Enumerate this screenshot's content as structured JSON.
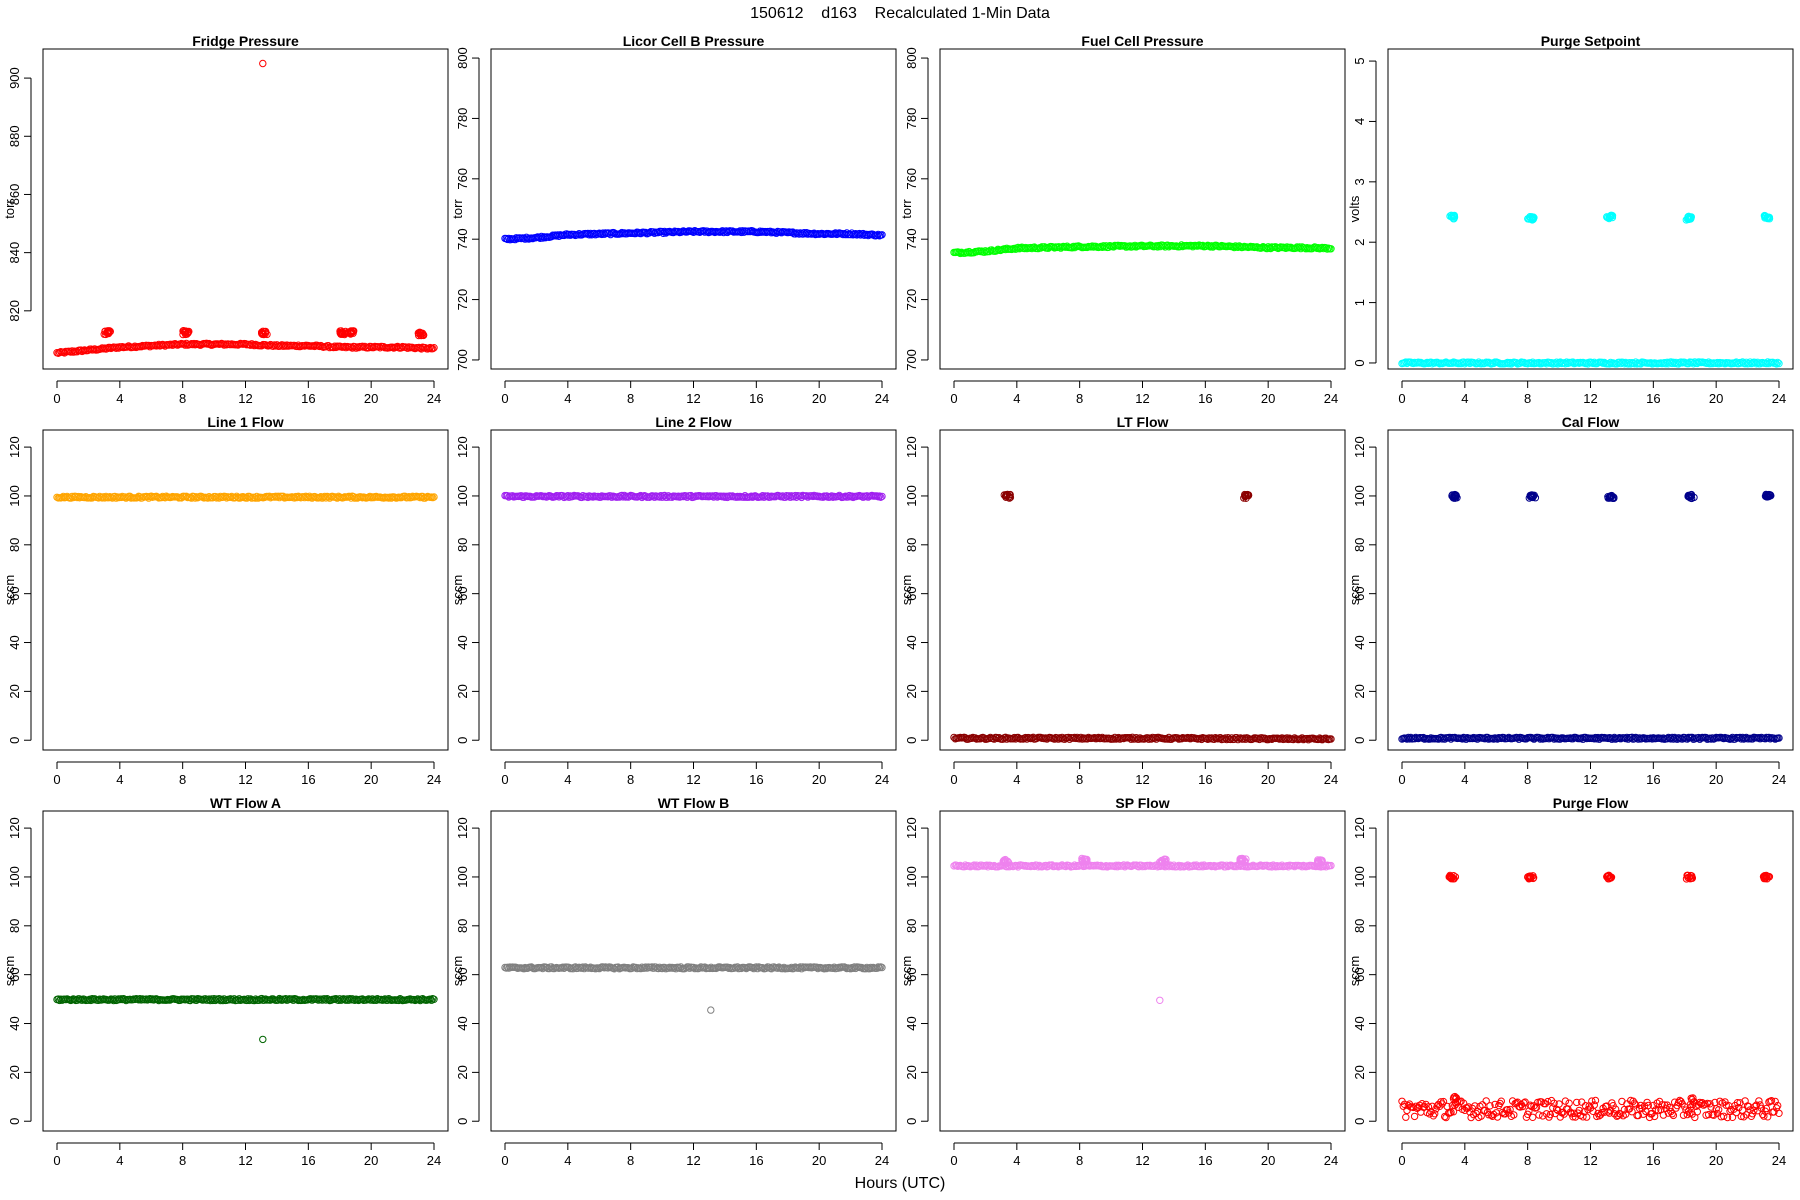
{
  "figure_title": "150612    d163    Recalculated 1-Min Data",
  "x_axis_label": "Hours (UTC)",
  "chart_data": [
    {
      "type": "scatter",
      "title": "Fridge Pressure",
      "ylabel": "torr",
      "color": "#ff0000",
      "xlim": [
        0,
        24
      ],
      "xticks": [
        0,
        4,
        8,
        12,
        16,
        20,
        24
      ],
      "ylim": [
        800,
        910
      ],
      "yticks": [
        820,
        840,
        860,
        880,
        900
      ],
      "baseline": [
        [
          0,
          805.5
        ],
        [
          1,
          806
        ],
        [
          2,
          806.5
        ],
        [
          3,
          807
        ],
        [
          4,
          807.5
        ],
        [
          6,
          808
        ],
        [
          8,
          808.5
        ],
        [
          10,
          808.5
        ],
        [
          12,
          808.5
        ],
        [
          14,
          808
        ],
        [
          16,
          808
        ],
        [
          18,
          807.5
        ],
        [
          20,
          807.5
        ],
        [
          22,
          807.5
        ],
        [
          24,
          807
        ]
      ],
      "clusters": [
        [
          3.2,
          812.5
        ],
        [
          8.2,
          812.5
        ],
        [
          13.2,
          812.5
        ],
        [
          18.2,
          812.5
        ],
        [
          18.7,
          812.5
        ],
        [
          23.2,
          812
        ]
      ],
      "outliers": [
        [
          13.1,
          905
        ]
      ]
    },
    {
      "type": "scatter",
      "title": "Licor Cell B Pressure",
      "ylabel": "torr",
      "color": "#0000ff",
      "xlim": [
        0,
        24
      ],
      "xticks": [
        0,
        4,
        8,
        12,
        16,
        20,
        24
      ],
      "ylim": [
        697,
        803
      ],
      "yticks": [
        700,
        720,
        740,
        760,
        780,
        800
      ],
      "baseline": [
        [
          0,
          740
        ],
        [
          2,
          740.5
        ],
        [
          4,
          741.5
        ],
        [
          8,
          742
        ],
        [
          12,
          742.5
        ],
        [
          16,
          742.5
        ],
        [
          20,
          741.8
        ],
        [
          22,
          741.8
        ],
        [
          24,
          741.3
        ]
      ],
      "clusters": [],
      "outliers": []
    },
    {
      "type": "scatter",
      "title": "Fuel Cell Pressure",
      "ylabel": "torr",
      "color": "#00ff00",
      "xlim": [
        0,
        24
      ],
      "xticks": [
        0,
        4,
        8,
        12,
        16,
        20,
        24
      ],
      "ylim": [
        697,
        803
      ],
      "yticks": [
        700,
        720,
        740,
        760,
        780,
        800
      ],
      "baseline": [
        [
          0,
          735.5
        ],
        [
          2,
          736
        ],
        [
          4,
          737
        ],
        [
          8,
          737.5
        ],
        [
          12,
          737.7
        ],
        [
          16,
          737.8
        ],
        [
          20,
          737.2
        ],
        [
          22,
          737.2
        ],
        [
          24,
          737
        ]
      ],
      "clusters": [],
      "outliers": []
    },
    {
      "type": "scatter",
      "title": "Purge Setpoint",
      "ylabel": "volts",
      "color": "#00ffff",
      "xlim": [
        0,
        24
      ],
      "xticks": [
        0,
        4,
        8,
        12,
        16,
        20,
        24
      ],
      "ylim": [
        -0.1,
        5.2
      ],
      "yticks": [
        0,
        1,
        2,
        3,
        4,
        5
      ],
      "baseline": [
        [
          0,
          0
        ],
        [
          24,
          0
        ]
      ],
      "clusters": [
        [
          3.2,
          2.42
        ],
        [
          8.2,
          2.4
        ],
        [
          13.2,
          2.42
        ],
        [
          18.3,
          2.4
        ],
        [
          23.2,
          2.42
        ]
      ],
      "outliers": []
    },
    {
      "type": "scatter",
      "title": "Line 1 Flow",
      "ylabel": "sccm",
      "color": "#ffa500",
      "xlim": [
        0,
        24
      ],
      "xticks": [
        0,
        4,
        8,
        12,
        16,
        20,
        24
      ],
      "ylim": [
        -4,
        127
      ],
      "yticks": [
        0,
        20,
        40,
        60,
        80,
        100,
        120
      ],
      "baseline": [
        [
          0,
          99.5
        ],
        [
          24,
          99.5
        ]
      ],
      "clusters": [],
      "outliers": []
    },
    {
      "type": "scatter",
      "title": "Line 2 Flow",
      "ylabel": "sccm",
      "color": "#a020f0",
      "xlim": [
        0,
        24
      ],
      "xticks": [
        0,
        4,
        8,
        12,
        16,
        20,
        24
      ],
      "ylim": [
        -4,
        127
      ],
      "yticks": [
        0,
        20,
        40,
        60,
        80,
        100,
        120
      ],
      "baseline": [
        [
          0,
          99.8
        ],
        [
          24,
          99.8
        ]
      ],
      "clusters": [],
      "outliers": []
    },
    {
      "type": "scatter",
      "title": "LT Flow",
      "ylabel": "sccm",
      "color": "#8b0000",
      "xlim": [
        0,
        24
      ],
      "xticks": [
        0,
        4,
        8,
        12,
        16,
        20,
        24
      ],
      "ylim": [
        -4,
        127
      ],
      "yticks": [
        0,
        20,
        40,
        60,
        80,
        100,
        120
      ],
      "baseline": [
        [
          0,
          0.8
        ],
        [
          12,
          0.8
        ],
        [
          24,
          0.5
        ]
      ],
      "clusters": [
        [
          3.4,
          99.8
        ],
        [
          18.6,
          99.8
        ]
      ],
      "outliers": []
    },
    {
      "type": "scatter",
      "title": "Cal Flow",
      "ylabel": "sccm",
      "color": "#00008b",
      "xlim": [
        0,
        24
      ],
      "xticks": [
        0,
        4,
        8,
        12,
        16,
        20,
        24
      ],
      "ylim": [
        -4,
        127
      ],
      "yticks": [
        0,
        20,
        40,
        60,
        80,
        100,
        120
      ],
      "baseline": [
        [
          0,
          0.8
        ],
        [
          24,
          0.8
        ]
      ],
      "clusters": [
        [
          3.3,
          99.8
        ],
        [
          8.3,
          99.8
        ],
        [
          13.3,
          99.8
        ],
        [
          18.4,
          99.8
        ],
        [
          23.3,
          99.8
        ]
      ],
      "outliers": []
    },
    {
      "type": "scatter",
      "title": "WT Flow A",
      "ylabel": "sccm",
      "color": "#006400",
      "xlim": [
        0,
        24
      ],
      "xticks": [
        0,
        4,
        8,
        12,
        16,
        20,
        24
      ],
      "ylim": [
        -4,
        127
      ],
      "yticks": [
        0,
        20,
        40,
        60,
        80,
        100,
        120
      ],
      "baseline": [
        [
          0,
          49.8
        ],
        [
          24,
          49.8
        ]
      ],
      "clusters": [],
      "outliers": [
        [
          13.1,
          33.5
        ]
      ]
    },
    {
      "type": "scatter",
      "title": "WT Flow B",
      "ylabel": "sccm",
      "color": "#808080",
      "xlim": [
        0,
        24
      ],
      "xticks": [
        0,
        4,
        8,
        12,
        16,
        20,
        24
      ],
      "ylim": [
        -4,
        127
      ],
      "yticks": [
        0,
        20,
        40,
        60,
        80,
        100,
        120
      ],
      "baseline": [
        [
          0,
          62.8
        ],
        [
          24,
          62.8
        ]
      ],
      "clusters": [],
      "outliers": [
        [
          13.1,
          45.5
        ]
      ]
    },
    {
      "type": "scatter",
      "title": "SP Flow",
      "ylabel": "sccm",
      "color": "#ee82ee",
      "xlim": [
        0,
        24
      ],
      "xticks": [
        0,
        4,
        8,
        12,
        16,
        20,
        24
      ],
      "ylim": [
        -4,
        127
      ],
      "yticks": [
        0,
        20,
        40,
        60,
        80,
        100,
        120
      ],
      "baseline": [
        [
          0,
          104.5
        ],
        [
          24,
          104.5
        ]
      ],
      "clusters": [
        [
          3.3,
          106.5
        ],
        [
          8.3,
          106.8
        ],
        [
          13.3,
          106.5
        ],
        [
          18.4,
          106.8
        ],
        [
          23.3,
          106.2
        ]
      ],
      "outliers": [
        [
          13.1,
          49.5
        ]
      ]
    },
    {
      "type": "scatter",
      "title": "Purge Flow",
      "ylabel": "sccm",
      "color": "#ff0000",
      "xlim": [
        0,
        24
      ],
      "xticks": [
        0,
        4,
        8,
        12,
        16,
        20,
        24
      ],
      "ylim": [
        -4,
        127
      ],
      "yticks": [
        0,
        20,
        40,
        60,
        80,
        100,
        120
      ],
      "baseline": [
        [
          0,
          5
        ],
        [
          24,
          5
        ]
      ],
      "clusters": [
        [
          3.2,
          100
        ],
        [
          8.2,
          100
        ],
        [
          13.2,
          100
        ],
        [
          18.3,
          100
        ],
        [
          23.2,
          100
        ]
      ],
      "outliers": [],
      "spikes": [
        [
          3.4,
          11
        ],
        [
          18.5,
          10.5
        ]
      ],
      "noise": 3.5
    }
  ]
}
